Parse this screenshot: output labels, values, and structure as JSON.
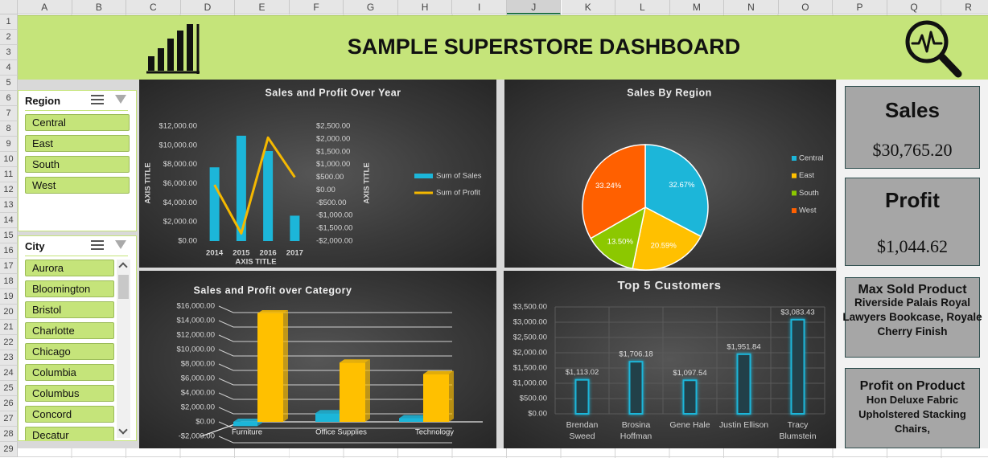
{
  "sheet": {
    "columns": [
      "A",
      "B",
      "C",
      "D",
      "E",
      "F",
      "G",
      "H",
      "I",
      "J",
      "K",
      "L",
      "M",
      "N",
      "O",
      "P",
      "Q",
      "R"
    ],
    "rows": [
      1,
      2,
      3,
      4,
      5,
      6,
      7,
      8,
      9,
      10,
      11,
      12,
      13,
      14,
      15,
      16,
      17,
      18,
      19,
      20,
      21,
      22,
      23,
      24,
      25,
      26,
      27,
      28,
      29
    ]
  },
  "header": {
    "title": "SAMPLE SUPERSTORE DASHBOARD"
  },
  "slicers": [
    {
      "title": "Region",
      "items": [
        "Central",
        "East",
        "South",
        "West"
      ]
    },
    {
      "title": "City",
      "items": [
        "Aurora",
        "Bloomington",
        "Bristol",
        "Charlotte",
        "Chicago",
        "Columbia",
        "Columbus",
        "Concord",
        "Decatur"
      ]
    }
  ],
  "chart_data": [
    {
      "type": "combo",
      "title": "Sales and Profit Over Year",
      "categories": [
        "2014",
        "2015",
        "2016",
        "2017"
      ],
      "series": [
        {
          "name": "Sum of Sales",
          "type": "bar",
          "color": "#1cb6d9",
          "values": [
            7700,
            11000,
            9400,
            2650
          ]
        },
        {
          "name": "Sum of Profit",
          "type": "line",
          "axis": "y2",
          "color": "#f5b800",
          "values": [
            200,
            -1700,
            2050,
            500
          ]
        }
      ],
      "ylim": [
        0,
        12000
      ],
      "yticks": [
        {
          "value": 0,
          "label": "$0.00"
        },
        {
          "value": 2000,
          "label": "$2,000.00"
        },
        {
          "value": 4000,
          "label": "$4,000.00"
        },
        {
          "value": 6000,
          "label": "$6,000.00"
        },
        {
          "value": 8000,
          "label": "$8,000.00"
        },
        {
          "value": 10000,
          "label": "$10,000.00"
        },
        {
          "value": 12000,
          "label": "$12,000.00"
        }
      ],
      "y2lim": [
        -2000,
        2500
      ],
      "y2ticks": [
        {
          "value": -2000,
          "label": "-$2,000.00"
        },
        {
          "value": -1500,
          "label": "-$1,500.00"
        },
        {
          "value": -1000,
          "label": "-$1,000.00"
        },
        {
          "value": -500,
          "label": "-$500.00"
        },
        {
          "value": 0,
          "label": "$0.00"
        },
        {
          "value": 500,
          "label": "$500.00"
        },
        {
          "value": 1000,
          "label": "$1,000.00"
        },
        {
          "value": 1500,
          "label": "$1,500.00"
        },
        {
          "value": 2000,
          "label": "$2,000.00"
        },
        {
          "value": 2500,
          "label": "$2,500.00"
        }
      ],
      "x_label": "AXIS TITLE",
      "y_label": "AXIS TITLE",
      "y2_label": "AXIS TITLE",
      "legend": "right"
    },
    {
      "type": "pie",
      "title": "Sales By Region",
      "categories": [
        "Central",
        "East",
        "South",
        "West"
      ],
      "values": [
        32.67,
        20.59,
        13.5,
        33.24
      ],
      "value_labels": [
        "32.67%",
        "20.59%",
        "13.50%",
        "33.24%"
      ],
      "colors": [
        "#1cb6d9",
        "#ffc000",
        "#8cc800",
        "#ff6000"
      ],
      "legend": "right"
    },
    {
      "type": "bar3d",
      "title": "Sales and Profit over Category",
      "categories": [
        "Furniture",
        "Office Supplies",
        "Technology"
      ],
      "series": [
        {
          "color": "#1cb6d9",
          "values": [
            -600,
            1200,
            500
          ]
        },
        {
          "color": "#ffc000",
          "values": [
            15000,
            8200,
            6600
          ]
        }
      ],
      "ylim": [
        -2000,
        16000
      ],
      "yticks": [
        {
          "value": -2000,
          "label": "-$2,000.00"
        },
        {
          "value": 0,
          "label": "$0.00"
        },
        {
          "value": 2000,
          "label": "$2,000.00"
        },
        {
          "value": 4000,
          "label": "$4,000.00"
        },
        {
          "value": 6000,
          "label": "$6,000.00"
        },
        {
          "value": 8000,
          "label": "$8,000.00"
        },
        {
          "value": 10000,
          "label": "$10,000.00"
        },
        {
          "value": 12000,
          "label": "$12,000.00"
        },
        {
          "value": 14000,
          "label": "$14,000.00"
        },
        {
          "value": 16000,
          "label": "$16,000.00"
        }
      ],
      "grid": true
    },
    {
      "type": "bar",
      "title": "Top 5 Customers",
      "categories": [
        "Brendan Sweed",
        "Brosina Hoffman",
        "Gene Hale",
        "Justin Ellison",
        "Tracy Blumstein"
      ],
      "values": [
        1113.02,
        1706.18,
        1097.54,
        1951.84,
        3083.43
      ],
      "value_labels": [
        "$1,113.02",
        "$1,706.18",
        "$1,097.54",
        "$1,951.84",
        "$3,083.43"
      ],
      "color": "#1cb6d9",
      "ylim": [
        0,
        3500
      ],
      "yticks": [
        {
          "value": 0,
          "label": "$0.00"
        },
        {
          "value": 500,
          "label": "$500.00"
        },
        {
          "value": 1000,
          "label": "$1,000.00"
        },
        {
          "value": 1500,
          "label": "$1,500.00"
        },
        {
          "value": 2000,
          "label": "$2,000.00"
        },
        {
          "value": 2500,
          "label": "$2,500.00"
        },
        {
          "value": 3000,
          "label": "$3,000.00"
        },
        {
          "value": 3500,
          "label": "$3,500.00"
        }
      ],
      "grid": true
    }
  ],
  "kpis": [
    {
      "title": "Sales",
      "value": "$30,765.20"
    },
    {
      "title": "Profit",
      "value": "$1,044.62"
    },
    {
      "title": "Max Sold Product",
      "value": "Riverside Palais Royal Lawyers Bookcase, Royale Cherry Finish"
    },
    {
      "title": "Profit on Product",
      "value": "Hon Deluxe Fabric Upholstered Stacking Chairs,"
    }
  ]
}
